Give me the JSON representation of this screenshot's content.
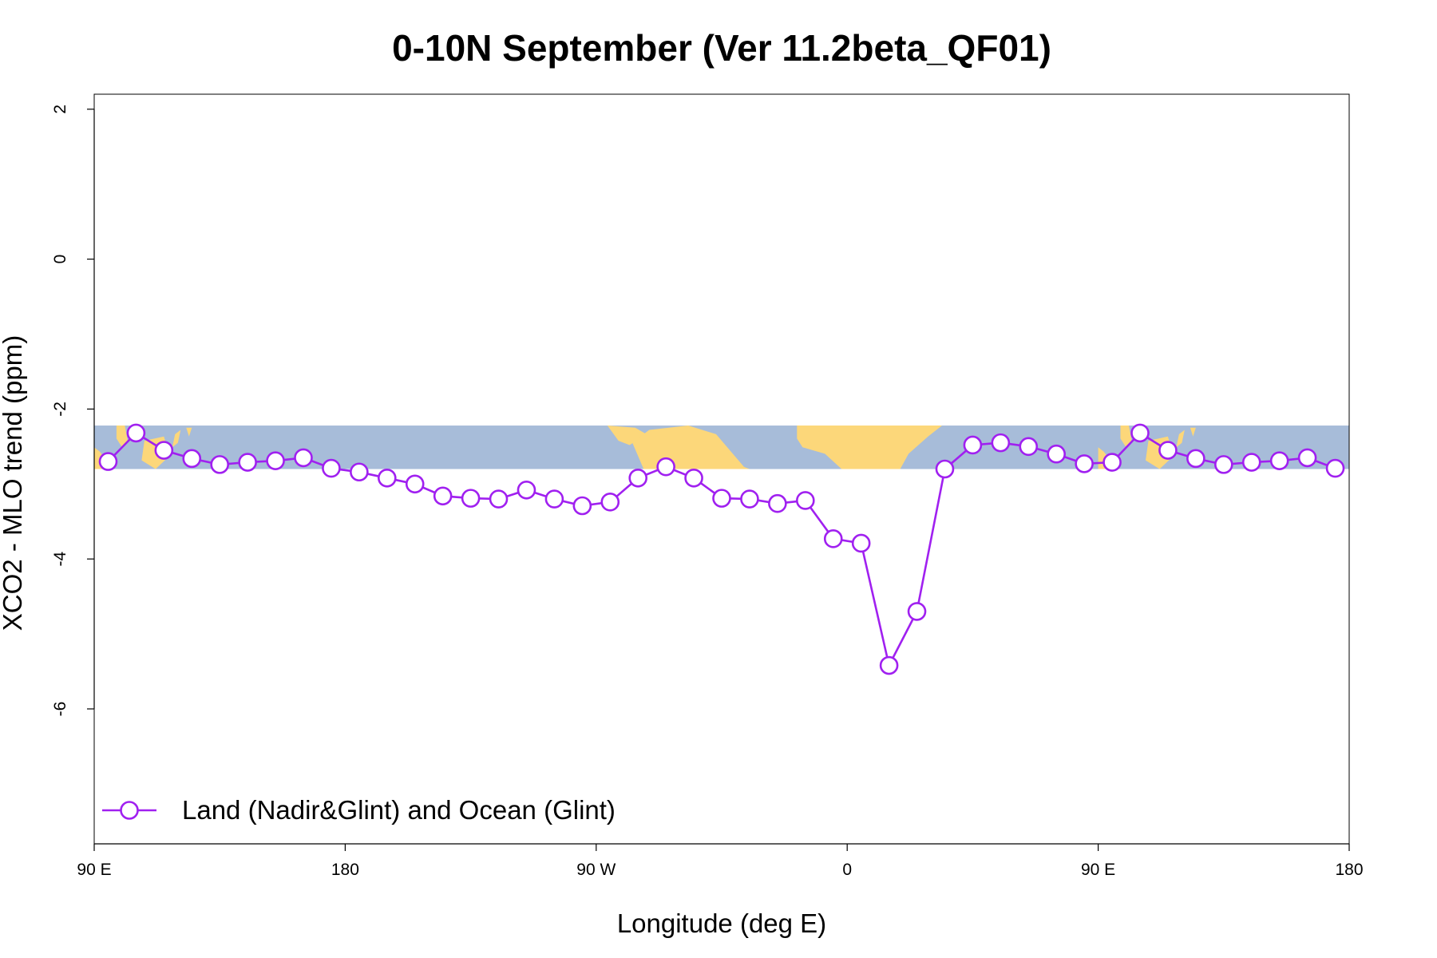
{
  "chart_data": {
    "type": "line",
    "title": "0-10N September (Ver 11.2beta_QF01)",
    "xlabel": "Longitude (deg E)",
    "ylabel": "XCO2 - MLO trend (ppm)",
    "xlim": [
      90,
      540
    ],
    "ylim": [
      -7.8,
      2.2
    ],
    "x_ticks": [
      {
        "value": 90,
        "label": "90 E"
      },
      {
        "value": 180,
        "label": "180"
      },
      {
        "value": 270,
        "label": "90 W"
      },
      {
        "value": 360,
        "label": "0"
      },
      {
        "value": 450,
        "label": "90 E"
      },
      {
        "value": 540,
        "label": "180"
      }
    ],
    "y_ticks": [
      {
        "value": 2,
        "label": "2"
      },
      {
        "value": 0,
        "label": "0"
      },
      {
        "value": -2,
        "label": "-2"
      },
      {
        "value": -4,
        "label": "-4"
      },
      {
        "value": -6,
        "label": "-6"
      }
    ],
    "legend_position": "bottom-left",
    "map_band": {
      "ymin": -2.8,
      "ymax": -2.22,
      "ocean_color": "#a7bcd9",
      "land_color": "#fcd77a"
    },
    "series": [
      {
        "name": "Land (Nadir&Glint) and Ocean (Glint)",
        "color": "#a020f0",
        "marker": "open-circle",
        "x": [
          95,
          105,
          115,
          125,
          135,
          145,
          155,
          165,
          175,
          185,
          195,
          205,
          215,
          225,
          235,
          245,
          255,
          265,
          275,
          285,
          295,
          305,
          315,
          325,
          335,
          345,
          355,
          365,
          375,
          385,
          395,
          405,
          415,
          425,
          435,
          445,
          455,
          465,
          475,
          485,
          495,
          505,
          515,
          525,
          535
        ],
        "y": [
          -2.7,
          -2.32,
          -2.55,
          -2.66,
          -2.74,
          -2.71,
          -2.69,
          -2.65,
          -2.79,
          -2.84,
          -2.92,
          -3.0,
          -3.16,
          -3.19,
          -3.2,
          -3.08,
          -3.2,
          -3.29,
          -3.24,
          -2.92,
          -2.77,
          -2.92,
          -3.19,
          -3.2,
          -3.26,
          -3.22,
          -3.73,
          -3.79,
          -5.42,
          -4.7,
          -2.8,
          -2.48,
          -2.45,
          -2.5,
          -2.6,
          -2.73,
          -2.71,
          -2.32,
          -2.55,
          -2.66,
          -2.74,
          -2.71,
          -2.69,
          -2.65,
          -2.79
        ]
      }
    ]
  }
}
